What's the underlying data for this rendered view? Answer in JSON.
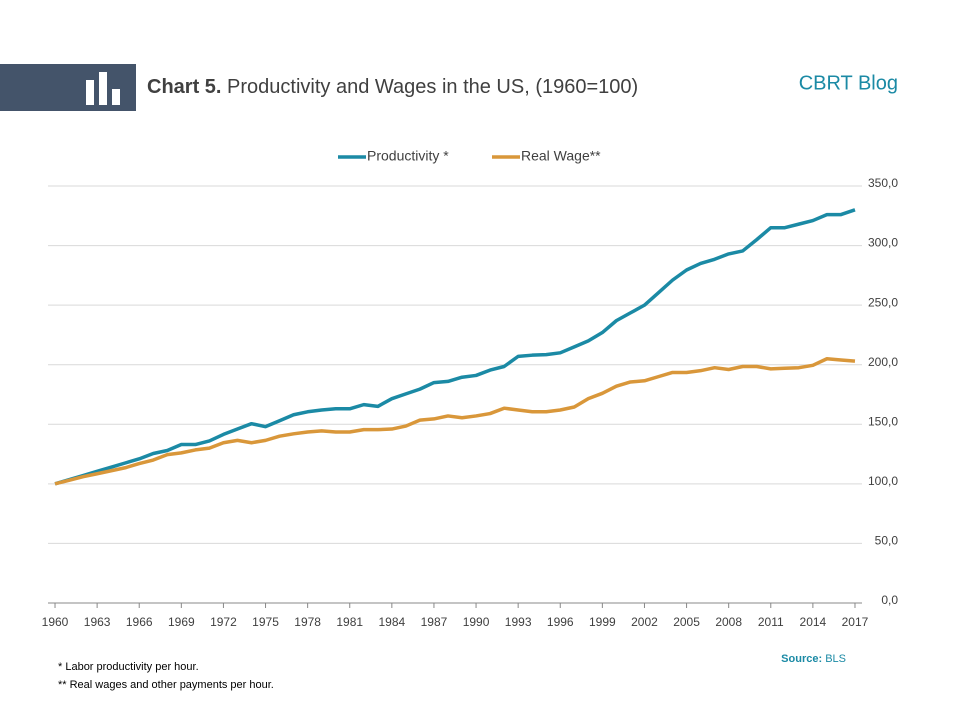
{
  "chart_data": {
    "type": "line",
    "title_prefix": "Chart 5.",
    "title": "Productivity and Wages in the US, (1960=100)",
    "brand": "CBRT Blog",
    "x": [
      1960,
      1961,
      1962,
      1963,
      1964,
      1965,
      1966,
      1967,
      1968,
      1969,
      1970,
      1971,
      1972,
      1973,
      1974,
      1975,
      1976,
      1977,
      1978,
      1979,
      1980,
      1981,
      1982,
      1983,
      1984,
      1985,
      1986,
      1987,
      1988,
      1989,
      1990,
      1991,
      1992,
      1993,
      1994,
      1995,
      1996,
      1997,
      1998,
      1999,
      2000,
      2001,
      2002,
      2003,
      2004,
      2005,
      2006,
      2007,
      2008,
      2009,
      2010,
      2011,
      2012,
      2013,
      2014,
      2015,
      2016,
      2017
    ],
    "series": [
      {
        "name": "Productivity *",
        "color": "#1b8aa5",
        "values": [
          100,
          103.5,
          107,
          110.5,
          114,
          117.5,
          121,
          125.5,
          128,
          133,
          133,
          136,
          141.5,
          146,
          150.5,
          148,
          153,
          158,
          160.5,
          162,
          163,
          163,
          166.5,
          165,
          171.5,
          175.5,
          179.5,
          185,
          186,
          189.5,
          191,
          195.5,
          198.5,
          207,
          208,
          208.5,
          210,
          215,
          220,
          227,
          237,
          243.5,
          250,
          260.5,
          271,
          279.5,
          285,
          288.5,
          293,
          295.5,
          305,
          315,
          315,
          318,
          321,
          326,
          326,
          330
        ]
      },
      {
        "name": "Real Wage**",
        "color": "#d9973a",
        "values": [
          100,
          103,
          106,
          108.5,
          111,
          113.5,
          117,
          120,
          124.5,
          126,
          128.5,
          130,
          134.5,
          136.5,
          134.5,
          136.5,
          140,
          142,
          143.5,
          144.5,
          143.5,
          143.5,
          145.5,
          145.5,
          146,
          148.5,
          153.5,
          154.5,
          157,
          155.5,
          157,
          159,
          163.5,
          162,
          160.5,
          160.5,
          162,
          164.5,
          171.5,
          176,
          182,
          185.5,
          186.5,
          190,
          193.5,
          193.5,
          195,
          197.5,
          196,
          198.5,
          198.5,
          196.5,
          197,
          197.5,
          199.5,
          205,
          204,
          203
        ]
      }
    ],
    "xlim": [
      1959.5,
      2017.5
    ],
    "xticks": [
      1960,
      1963,
      1966,
      1969,
      1972,
      1975,
      1978,
      1981,
      1984,
      1987,
      1990,
      1993,
      1996,
      1999,
      2002,
      2005,
      2008,
      2011,
      2014,
      2017
    ],
    "ylim": [
      0,
      350
    ],
    "yticks": [
      {
        "value": 0,
        "label": "0,0"
      },
      {
        "value": 50,
        "label": "50,0"
      },
      {
        "value": 100,
        "label": "100,0"
      },
      {
        "value": 150,
        "label": "150,0"
      },
      {
        "value": 200,
        "label": "200,0"
      },
      {
        "value": 250,
        "label": "250,0"
      },
      {
        "value": 300,
        "label": "300,0"
      },
      {
        "value": 350,
        "label": "350,0"
      }
    ],
    "grid": true,
    "legend": "top",
    "notes": [
      "* Labor productivity per hour.",
      "** Real wages and other payments per hour."
    ],
    "source_label": "Source:",
    "source": "BLS"
  }
}
